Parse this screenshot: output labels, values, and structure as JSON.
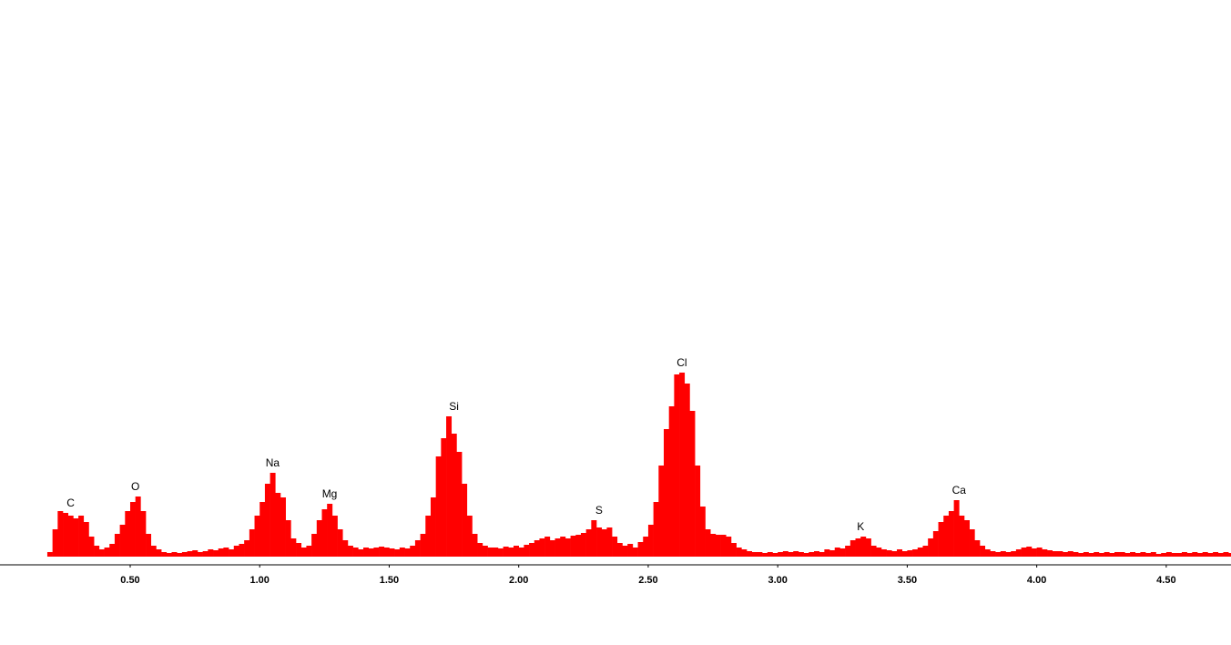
{
  "chart_data": {
    "type": "bar",
    "color": "#ff0000",
    "x": [
      0.16,
      0.18,
      0.2,
      0.22,
      0.24,
      0.26,
      0.28,
      0.3,
      0.32,
      0.34,
      0.36,
      0.38,
      0.4,
      0.42,
      0.44,
      0.46,
      0.48,
      0.5,
      0.52,
      0.54,
      0.56,
      0.58,
      0.6,
      0.62,
      0.64,
      0.66,
      0.68,
      0.7,
      0.72,
      0.74,
      0.76,
      0.78,
      0.8,
      0.82,
      0.84,
      0.86,
      0.88,
      0.9,
      0.92,
      0.94,
      0.96,
      0.98,
      1.0,
      1.02,
      1.04,
      1.06,
      1.08,
      1.1,
      1.12,
      1.14,
      1.16,
      1.18,
      1.2,
      1.22,
      1.24,
      1.26,
      1.28,
      1.3,
      1.32,
      1.34,
      1.36,
      1.38,
      1.4,
      1.42,
      1.44,
      1.46,
      1.48,
      1.5,
      1.52,
      1.54,
      1.56,
      1.58,
      1.6,
      1.62,
      1.64,
      1.66,
      1.68,
      1.7,
      1.72,
      1.74,
      1.76,
      1.78,
      1.8,
      1.82,
      1.84,
      1.86,
      1.88,
      1.9,
      1.92,
      1.94,
      1.96,
      1.98,
      2.0,
      2.02,
      2.04,
      2.06,
      2.08,
      2.1,
      2.12,
      2.14,
      2.16,
      2.18,
      2.2,
      2.22,
      2.24,
      2.26,
      2.28,
      2.3,
      2.32,
      2.34,
      2.36,
      2.38,
      2.4,
      2.42,
      2.44,
      2.46,
      2.48,
      2.5,
      2.52,
      2.54,
      2.56,
      2.58,
      2.6,
      2.62,
      2.64,
      2.66,
      2.68,
      2.7,
      2.72,
      2.74,
      2.76,
      2.78,
      2.8,
      2.82,
      2.84,
      2.86,
      2.88,
      2.9,
      2.92,
      2.94,
      2.96,
      2.98,
      3.0,
      3.02,
      3.04,
      3.06,
      3.08,
      3.1,
      3.12,
      3.14,
      3.16,
      3.18,
      3.2,
      3.22,
      3.24,
      3.26,
      3.28,
      3.3,
      3.32,
      3.34,
      3.36,
      3.38,
      3.4,
      3.42,
      3.44,
      3.46,
      3.48,
      3.5,
      3.52,
      3.54,
      3.56,
      3.58,
      3.6,
      3.62,
      3.64,
      3.66,
      3.68,
      3.7,
      3.72,
      3.74,
      3.76,
      3.78,
      3.8,
      3.82,
      3.84,
      3.86,
      3.88,
      3.9,
      3.92,
      3.94,
      3.96,
      3.98,
      4.0,
      4.02,
      4.04,
      4.06,
      4.08,
      4.1,
      4.12,
      4.14,
      4.16,
      4.18,
      4.2,
      4.22,
      4.24,
      4.26,
      4.28,
      4.3,
      4.32,
      4.34,
      4.36,
      4.38,
      4.4,
      4.42,
      4.44,
      4.46,
      4.48,
      4.5,
      4.52,
      4.54,
      4.56,
      4.58,
      4.6,
      4.62,
      4.64,
      4.66,
      4.68,
      4.7,
      4.72,
      4.74
    ],
    "values": [
      0,
      5,
      30,
      50,
      48,
      45,
      42,
      45,
      38,
      22,
      12,
      8,
      10,
      14,
      25,
      35,
      50,
      60,
      66,
      50,
      25,
      12,
      8,
      5,
      4,
      5,
      4,
      5,
      6,
      7,
      5,
      6,
      8,
      7,
      9,
      10,
      8,
      12,
      14,
      18,
      30,
      45,
      60,
      80,
      92,
      70,
      65,
      40,
      20,
      15,
      10,
      12,
      25,
      40,
      52,
      58,
      45,
      30,
      18,
      12,
      10,
      8,
      10,
      9,
      10,
      11,
      10,
      9,
      8,
      10,
      9,
      12,
      18,
      25,
      45,
      65,
      110,
      130,
      154,
      135,
      115,
      80,
      45,
      25,
      15,
      12,
      10,
      10,
      9,
      11,
      10,
      12,
      10,
      13,
      15,
      18,
      20,
      22,
      18,
      20,
      22,
      20,
      23,
      24,
      26,
      30,
      40,
      32,
      30,
      32,
      22,
      15,
      12,
      14,
      10,
      16,
      22,
      35,
      60,
      100,
      140,
      165,
      200,
      202,
      190,
      160,
      100,
      55,
      30,
      25,
      24,
      24,
      22,
      15,
      10,
      8,
      6,
      5,
      5,
      4,
      5,
      4,
      5,
      6,
      5,
      6,
      5,
      4,
      5,
      6,
      5,
      8,
      7,
      10,
      9,
      12,
      18,
      20,
      22,
      20,
      12,
      10,
      8,
      7,
      6,
      8,
      6,
      7,
      8,
      10,
      12,
      20,
      28,
      38,
      45,
      50,
      62,
      45,
      40,
      30,
      18,
      12,
      8,
      6,
      5,
      6,
      5,
      6,
      8,
      10,
      11,
      9,
      10,
      8,
      7,
      6,
      6,
      5,
      6,
      5,
      4,
      5,
      4,
      5,
      4,
      5,
      4,
      5,
      5,
      4,
      5,
      4,
      5,
      4,
      5,
      3,
      4,
      5,
      4,
      4,
      5,
      4,
      5,
      4,
      5,
      4,
      5,
      4,
      5,
      4
    ],
    "xlim": [
      0,
      4.75
    ],
    "ylim": [
      0,
      600
    ],
    "xticks": [
      {
        "value": 0.5,
        "label": "0.50"
      },
      {
        "value": 1,
        "label": "1.00"
      },
      {
        "value": 1.5,
        "label": "1.50"
      },
      {
        "value": 2,
        "label": "2.00"
      },
      {
        "value": 2.5,
        "label": "2.50"
      },
      {
        "value": 3,
        "label": "3.00"
      },
      {
        "value": 3.5,
        "label": "3.50"
      },
      {
        "value": 4,
        "label": "4.00"
      },
      {
        "value": 4.5,
        "label": "4.50"
      }
    ],
    "annotations": [
      {
        "text": "C",
        "x": 0.26
      },
      {
        "text": "O",
        "x": 0.51
      },
      {
        "text": "Na",
        "x": 1.04
      },
      {
        "text": "Mg",
        "x": 1.26
      },
      {
        "text": "Si",
        "x": 1.74
      },
      {
        "text": "S",
        "x": 2.3
      },
      {
        "text": "Cl",
        "x": 2.62
      },
      {
        "text": "K",
        "x": 3.31
      },
      {
        "text": "Ca",
        "x": 3.69
      }
    ]
  }
}
